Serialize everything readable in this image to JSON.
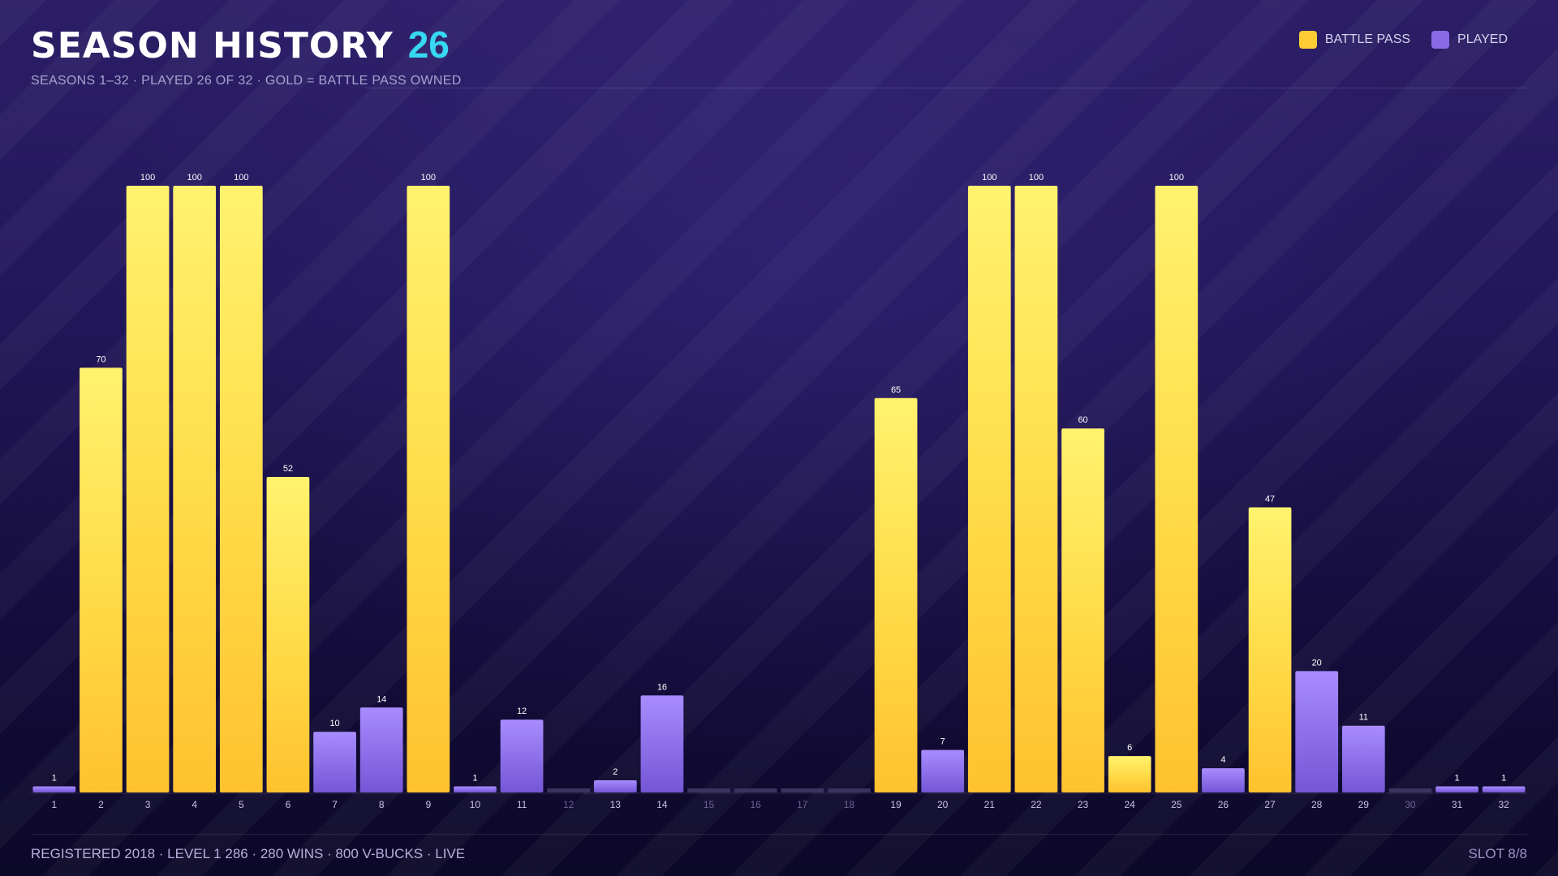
{
  "header": {
    "title": "SEASON HISTORY",
    "count": "26",
    "subtitle": "SEASONS 1–32  ·  PLAYED 26 OF 32  ·  GOLD = BATTLE PASS OWNED"
  },
  "legend": {
    "items": [
      {
        "label": "BATTLE PASS",
        "color": "#ffcc33"
      },
      {
        "label": "PLAYED",
        "color": "#8a6ae6"
      }
    ]
  },
  "footer": {
    "stats": "REGISTERED 2018  ·  LEVEL 1 286  ·  280 WINS  ·  800 V-BUCKS  ·  LIVE",
    "slot": "SLOT 8/8"
  },
  "chart_data": {
    "type": "bar",
    "categories": [
      "1",
      "2",
      "3",
      "4",
      "5",
      "6",
      "7",
      "8",
      "9",
      "10",
      "11",
      "12",
      "13",
      "14",
      "15",
      "16",
      "17",
      "18",
      "19",
      "20",
      "21",
      "22",
      "23",
      "24",
      "25",
      "26",
      "27",
      "28",
      "29",
      "30",
      "31",
      "32"
    ],
    "values": [
      1,
      70,
      100,
      100,
      100,
      52,
      10,
      14,
      100,
      1,
      12,
      null,
      2,
      16,
      null,
      null,
      null,
      null,
      65,
      7,
      100,
      100,
      60,
      6,
      100,
      4,
      47,
      20,
      11,
      null,
      1,
      1
    ],
    "battle_pass": [
      false,
      true,
      true,
      true,
      true,
      true,
      false,
      false,
      true,
      false,
      false,
      false,
      false,
      false,
      false,
      false,
      false,
      false,
      true,
      false,
      true,
      true,
      true,
      true,
      true,
      false,
      true,
      false,
      false,
      false,
      false,
      false
    ],
    "ylim": [
      0,
      100
    ],
    "colors": {
      "battle_pass": "#ffcc33",
      "played": "#8a6ae6",
      "not_played": "#3a3360"
    },
    "legend_position": "top-right",
    "grid": false
  }
}
